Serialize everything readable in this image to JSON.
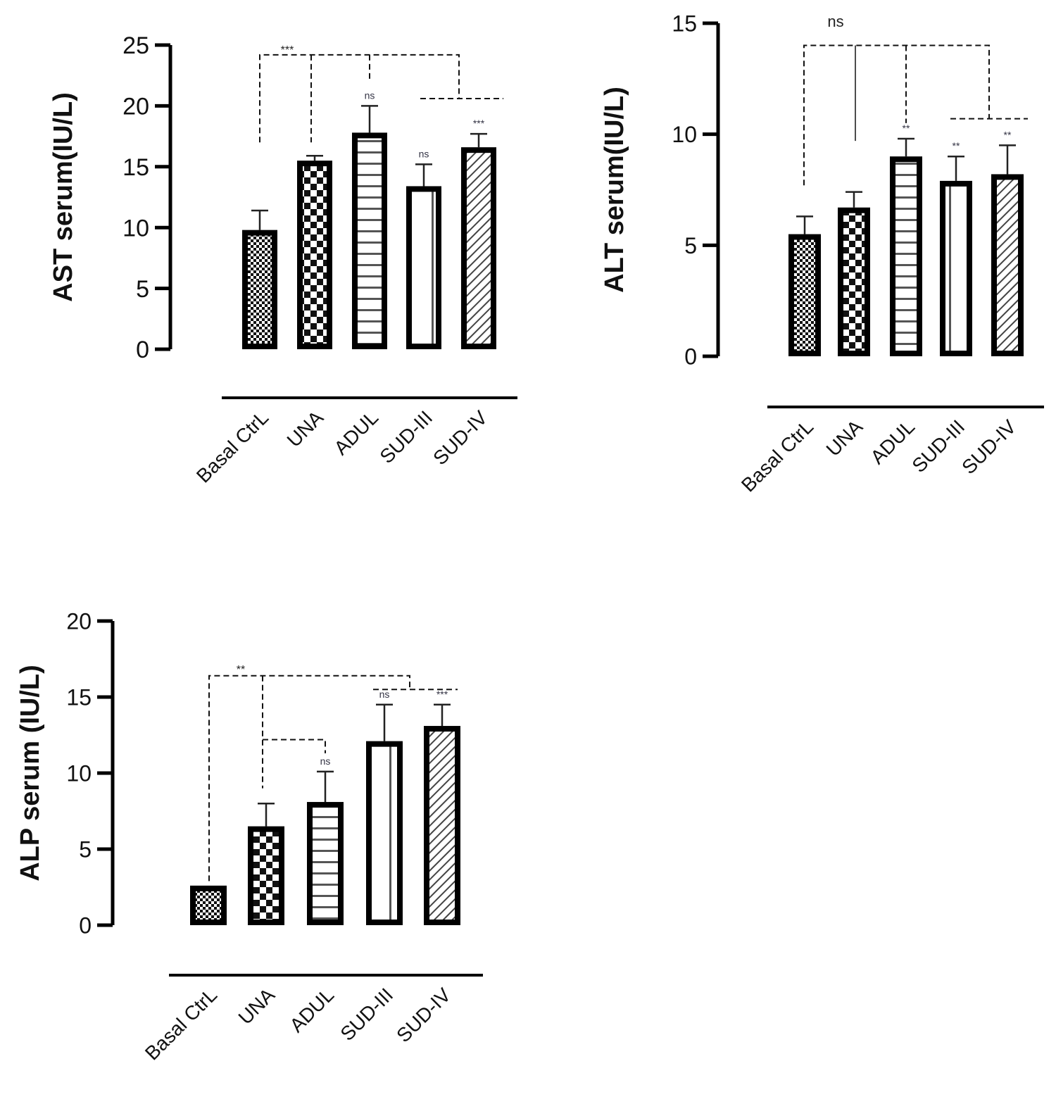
{
  "chart_data": [
    {
      "type": "bar",
      "ylabel": "AST serum(IU/L)",
      "categories": [
        "Basal CtrL",
        "UNA",
        "ADUL",
        "SUD-III",
        "SUD-IV"
      ],
      "values": [
        9.8,
        15.5,
        17.8,
        13.4,
        16.6
      ],
      "error_tops": [
        11.4,
        15.9,
        20.0,
        15.2,
        17.7
      ],
      "ylim": [
        0,
        25
      ],
      "yticks": [
        "0",
        "5",
        "10",
        "15",
        "20",
        "25"
      ],
      "bar_labels": [
        "",
        "",
        "ns",
        "ns",
        "***"
      ],
      "bracket_label": "***"
    },
    {
      "type": "bar",
      "ylabel": "ALT serum(IU/L)",
      "categories": [
        "Basal CtrL",
        "UNA",
        "ADUL",
        "SUD-III",
        "SUD-IV"
      ],
      "values": [
        5.5,
        6.7,
        9.0,
        7.9,
        8.2
      ],
      "error_tops": [
        6.3,
        7.4,
        9.8,
        9.0,
        9.5
      ],
      "ylim": [
        0,
        15
      ],
      "yticks": [
        "0",
        "5",
        "10",
        "15"
      ],
      "bar_labels": [
        "",
        "",
        "**",
        "**",
        "**"
      ],
      "bracket_label": "ns"
    },
    {
      "type": "bar",
      "ylabel": "ALP serum (IU/L)",
      "categories": [
        "Basal CtrL",
        "UNA",
        "ADUL",
        "SUD-III",
        "SUD-IV"
      ],
      "values": [
        2.6,
        6.5,
        8.1,
        12.1,
        13.1
      ],
      "error_tops": [
        2.6,
        8.0,
        10.1,
        14.5,
        14.5
      ],
      "ylim": [
        0,
        20
      ],
      "yticks": [
        "0",
        "5",
        "10",
        "15",
        "20"
      ],
      "bar_labels": [
        "",
        "",
        "ns",
        "ns",
        "***"
      ],
      "bracket_label": "**"
    }
  ]
}
